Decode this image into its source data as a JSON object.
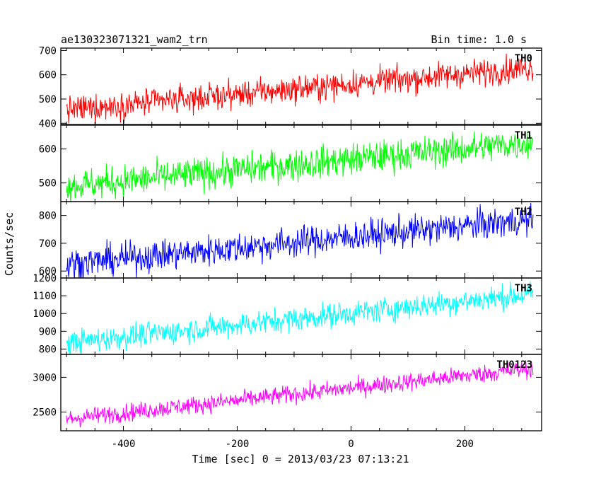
{
  "header": {
    "file_name": "ae130323071321_wam2_trn",
    "bin_time": "Bin time: 1.0 s"
  },
  "chart_data": {
    "type": "line",
    "title": "ae130323071321_wam2_trn",
    "subtitle": "Bin time: 1.0 s",
    "xlabel": "Time [sec] 0 = 2013/03/23 07:13:21",
    "ylabel": "Counts/sec",
    "xlim": [
      -510,
      335
    ],
    "x_start": -500,
    "x_end": 320,
    "x_step": 1,
    "xticks": [
      -400,
      -200,
      0,
      200
    ],
    "series": [
      {
        "name": "TH0",
        "color": "#ff0000",
        "ylim": [
          395,
          710
        ],
        "yticks": [
          400,
          500,
          600,
          700
        ],
        "trend_start": 455,
        "trend_end": 630,
        "noise": 28
      },
      {
        "name": "TH1",
        "color": "#00ff00",
        "ylim": [
          445,
          670
        ],
        "yticks": [
          500,
          600
        ],
        "trend_start": 490,
        "trend_end": 620,
        "noise": 24
      },
      {
        "name": "TH2",
        "color": "#0000ff",
        "ylim": [
          575,
          850
        ],
        "yticks": [
          600,
          700,
          800
        ],
        "trend_start": 625,
        "trend_end": 785,
        "noise": 28
      },
      {
        "name": "TH3",
        "color": "#00ffff",
        "ylim": [
          770,
          1200
        ],
        "yticks": [
          800,
          900,
          1000,
          1100,
          1200
        ],
        "trend_start": 835,
        "trend_end": 1110,
        "noise": 35
      },
      {
        "name": "TH0123",
        "color": "#ff00ff",
        "ylim": [
          2230,
          3330
        ],
        "yticks": [
          2500,
          3000
        ],
        "trend_start": 2400,
        "trend_end": 3130,
        "noise": 65
      }
    ]
  }
}
